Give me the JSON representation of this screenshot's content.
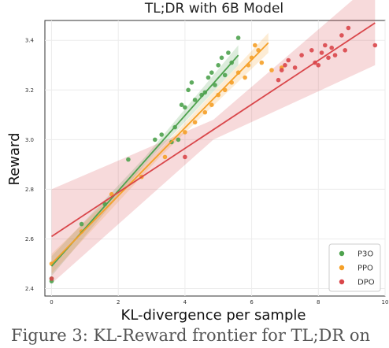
{
  "caption": "Figure 3: KL-Reward frontier for TL;DR on",
  "chart_data": {
    "type": "scatter",
    "title": "TL;DR with 6B Model",
    "xlabel": "KL-divergence per sample",
    "ylabel": "Reward",
    "xlim": [
      -0.2,
      10.0
    ],
    "ylim": [
      2.37,
      3.48
    ],
    "xticks": [
      0,
      2,
      4,
      6,
      8,
      10
    ],
    "yticks": [
      2.4,
      2.6,
      2.8,
      3.0,
      3.2,
      3.4
    ],
    "xtick_labels": [
      "0",
      "2",
      "4",
      "6",
      "8",
      "10"
    ],
    "ytick_labels": [
      "2.4",
      "2.6",
      "2.8",
      "3.0",
      "3.2",
      "3.4"
    ],
    "grid": true,
    "legend_position": "lower-right",
    "series": [
      {
        "name": "P3O",
        "color": "#4ea24e",
        "fit": {
          "x": [
            0,
            5.6
          ],
          "y": [
            2.49,
            3.34
          ]
        },
        "band_halfwidth": [
          0.04,
          0.015,
          0.04
        ],
        "points": [
          {
            "x": 0.0,
            "y": 2.44
          },
          {
            "x": 0.0,
            "y": 2.43
          },
          {
            "x": 0.9,
            "y": 2.66
          },
          {
            "x": 1.6,
            "y": 2.74
          },
          {
            "x": 2.3,
            "y": 2.92
          },
          {
            "x": 3.1,
            "y": 3.0
          },
          {
            "x": 3.3,
            "y": 3.02
          },
          {
            "x": 3.6,
            "y": 2.99
          },
          {
            "x": 3.7,
            "y": 3.05
          },
          {
            "x": 3.8,
            "y": 3.0
          },
          {
            "x": 3.9,
            "y": 3.14
          },
          {
            "x": 4.0,
            "y": 3.13
          },
          {
            "x": 4.1,
            "y": 3.2
          },
          {
            "x": 4.2,
            "y": 3.23
          },
          {
            "x": 4.3,
            "y": 3.16
          },
          {
            "x": 4.5,
            "y": 3.18
          },
          {
            "x": 4.6,
            "y": 3.19
          },
          {
            "x": 4.7,
            "y": 3.25
          },
          {
            "x": 4.8,
            "y": 3.27
          },
          {
            "x": 4.9,
            "y": 3.22
          },
          {
            "x": 5.0,
            "y": 3.3
          },
          {
            "x": 5.1,
            "y": 3.33
          },
          {
            "x": 5.2,
            "y": 3.26
          },
          {
            "x": 5.3,
            "y": 3.35
          },
          {
            "x": 5.4,
            "y": 3.31
          },
          {
            "x": 5.6,
            "y": 3.41
          }
        ]
      },
      {
        "name": "PPO",
        "color": "#f5a028",
        "fit": {
          "x": [
            0,
            6.5
          ],
          "y": [
            2.5,
            3.39
          ]
        },
        "band_halfwidth": [
          0.04,
          0.015,
          0.04
        ],
        "points": [
          {
            "x": 0.0,
            "y": 2.5
          },
          {
            "x": 0.9,
            "y": 2.63
          },
          {
            "x": 1.8,
            "y": 2.78
          },
          {
            "x": 2.7,
            "y": 2.85
          },
          {
            "x": 3.4,
            "y": 2.93
          },
          {
            "x": 4.0,
            "y": 3.03
          },
          {
            "x": 4.3,
            "y": 3.07
          },
          {
            "x": 4.6,
            "y": 3.11
          },
          {
            "x": 4.8,
            "y": 3.14
          },
          {
            "x": 5.0,
            "y": 3.18
          },
          {
            "x": 5.2,
            "y": 3.2
          },
          {
            "x": 5.4,
            "y": 3.23
          },
          {
            "x": 5.6,
            "y": 3.27
          },
          {
            "x": 5.8,
            "y": 3.25
          },
          {
            "x": 5.9,
            "y": 3.3
          },
          {
            "x": 6.0,
            "y": 3.33
          },
          {
            "x": 6.1,
            "y": 3.38
          },
          {
            "x": 6.2,
            "y": 3.36
          },
          {
            "x": 6.3,
            "y": 3.31
          },
          {
            "x": 6.6,
            "y": 3.28
          },
          {
            "x": 6.9,
            "y": 3.29
          }
        ]
      },
      {
        "name": "DPO",
        "color": "#d9464a",
        "fit": {
          "x": [
            0,
            9.7
          ],
          "y": [
            2.61,
            3.47
          ]
        },
        "band_halfwidth": [
          0.19,
          0.04,
          0.17
        ],
        "points": [
          {
            "x": 0.0,
            "y": 2.44
          },
          {
            "x": 4.0,
            "y": 2.93
          },
          {
            "x": 6.8,
            "y": 3.24
          },
          {
            "x": 6.9,
            "y": 3.28
          },
          {
            "x": 7.0,
            "y": 3.3
          },
          {
            "x": 7.1,
            "y": 3.32
          },
          {
            "x": 7.3,
            "y": 3.29
          },
          {
            "x": 7.5,
            "y": 3.34
          },
          {
            "x": 7.8,
            "y": 3.36
          },
          {
            "x": 7.9,
            "y": 3.31
          },
          {
            "x": 8.0,
            "y": 3.3
          },
          {
            "x": 8.1,
            "y": 3.35
          },
          {
            "x": 8.2,
            "y": 3.38
          },
          {
            "x": 8.3,
            "y": 3.33
          },
          {
            "x": 8.4,
            "y": 3.37
          },
          {
            "x": 8.5,
            "y": 3.34
          },
          {
            "x": 8.7,
            "y": 3.42
          },
          {
            "x": 8.8,
            "y": 3.36
          },
          {
            "x": 8.9,
            "y": 3.45
          },
          {
            "x": 9.7,
            "y": 3.38
          }
        ]
      }
    ]
  }
}
